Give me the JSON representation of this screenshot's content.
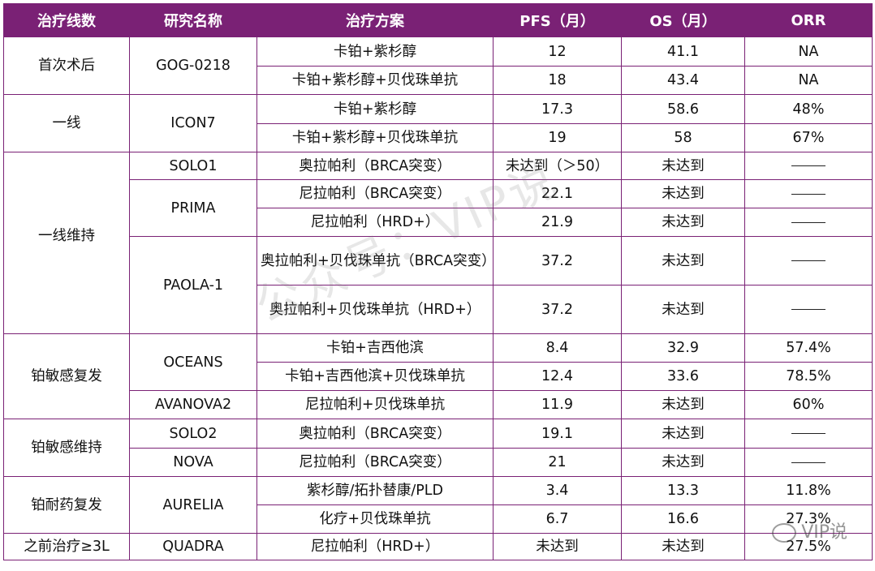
{
  "headers": [
    "治疗线数",
    "研究名称",
    "治疗方案",
    "PFS（月）",
    "OS（月）",
    "ORR"
  ],
  "colors": {
    "header_bg": "#7a2175",
    "border": "#7a2175"
  },
  "groups": [
    {
      "line": "首次术后",
      "rows": [
        {
          "study": "GOG-0218",
          "regimen": "卡铂+紫杉醇",
          "pfs": "12",
          "os": "41.1",
          "orr": "NA"
        },
        {
          "regimen": "卡铂+紫杉醇+贝伐珠单抗",
          "pfs": "18",
          "os": "43.4",
          "orr": "NA"
        }
      ]
    },
    {
      "line": "一线",
      "rows": [
        {
          "study": "ICON7",
          "regimen": "卡铂+紫杉醇",
          "pfs": "17.3",
          "os": "58.6",
          "orr": "48%"
        },
        {
          "regimen": "卡铂+紫杉醇+贝伐珠单抗",
          "pfs": "19",
          "os": "58",
          "orr": "67%"
        }
      ]
    },
    {
      "line": "一线维持",
      "rows": [
        {
          "study": "SOLO1",
          "regimen": "奥拉帕利（BRCA突变）",
          "pfs": "未达到（＞50）",
          "os": "未达到",
          "orr": "——"
        },
        {
          "study": "PRIMA",
          "regimen": "尼拉帕利（BRCA突变）",
          "pfs": "22.1",
          "os": "未达到",
          "orr": "——"
        },
        {
          "regimen": "尼拉帕利（HRD+）",
          "pfs": "21.9",
          "os": "未达到",
          "orr": "——"
        },
        {
          "study": "PAOLA-1",
          "regimen": "奥拉帕利+贝伐珠单抗（BRCA突变）",
          "pfs": "37.2",
          "os": "未达到",
          "orr": "——"
        },
        {
          "regimen": "奥拉帕利+贝伐珠单抗（HRD+）",
          "pfs": "37.2",
          "os": "未达到",
          "orr": "——"
        }
      ]
    },
    {
      "line": "铂敏感复发",
      "rows": [
        {
          "study": "OCEANS",
          "regimen": "卡铂+吉西他滨",
          "pfs": "8.4",
          "os": "32.9",
          "orr": "57.4%"
        },
        {
          "regimen": "卡铂+吉西他滨+贝伐珠单抗",
          "pfs": "12.4",
          "os": "33.6",
          "orr": "78.5%"
        },
        {
          "study": "AVANOVA2",
          "regimen": "尼拉帕利+贝伐珠单抗",
          "pfs": "11.9",
          "os": "未达到",
          "orr": "60%"
        }
      ]
    },
    {
      "line": "铂敏感维持",
      "rows": [
        {
          "study": "SOLO2",
          "regimen": "奥拉帕利（BRCA突变）",
          "pfs": "19.1",
          "os": "未达到",
          "orr": "——"
        },
        {
          "study": "NOVA",
          "regimen": "尼拉帕利（BRCA突变）",
          "pfs": "21",
          "os": "未达到",
          "orr": "——"
        }
      ]
    },
    {
      "line": "铂耐药复发",
      "rows": [
        {
          "study": "AURELIA",
          "regimen": "紫杉醇/拓扑替康/PLD",
          "pfs": "3.4",
          "os": "13.3",
          "orr": "11.8%"
        },
        {
          "regimen": "化疗+贝伐珠单抗",
          "pfs": "6.7",
          "os": "16.6",
          "orr": "27.3%"
        }
      ]
    },
    {
      "line": "之前治疗≥3L",
      "rows": [
        {
          "study": "QUADRA",
          "regimen": "尼拉帕利（HRD+）",
          "pfs": "未达到",
          "os": "未达到",
          "orr": "27.5%"
        }
      ]
    }
  ],
  "watermark": "公众号：VIP说",
  "logo": "VIP说"
}
